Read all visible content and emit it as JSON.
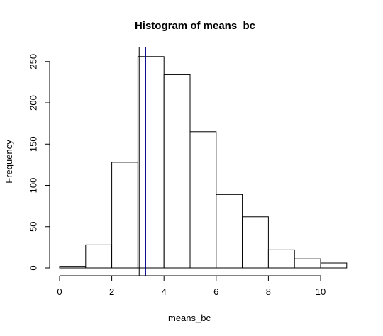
{
  "chart_data": {
    "type": "bar",
    "title": "Histogram of means_bc",
    "xlabel": "means_bc",
    "ylabel": "Frequency",
    "bins": [
      {
        "start": 0,
        "end": 1,
        "count": 2
      },
      {
        "start": 1,
        "end": 2,
        "count": 28
      },
      {
        "start": 2,
        "end": 3,
        "count": 128
      },
      {
        "start": 3,
        "end": 4,
        "count": 256
      },
      {
        "start": 4,
        "end": 5,
        "count": 234
      },
      {
        "start": 5,
        "end": 6,
        "count": 165
      },
      {
        "start": 6,
        "end": 7,
        "count": 89
      },
      {
        "start": 7,
        "end": 8,
        "count": 62
      },
      {
        "start": 8,
        "end": 9,
        "count": 22
      },
      {
        "start": 9,
        "end": 10,
        "count": 11
      },
      {
        "start": 10,
        "end": 11,
        "count": 6
      }
    ],
    "xlim": [
      0,
      11
    ],
    "ylim": [
      0,
      256
    ],
    "x_ticks": [
      0,
      2,
      4,
      6,
      8,
      10
    ],
    "y_ticks": [
      0,
      50,
      100,
      150,
      200,
      250
    ],
    "x_tick_labels": [
      "0",
      "2",
      "4",
      "6",
      "8",
      "10"
    ],
    "y_tick_labels": [
      "0",
      "50",
      "100",
      "150",
      "200",
      "250"
    ],
    "vertical_lines": [
      {
        "x": 3.05,
        "color": "#000000"
      },
      {
        "x": 3.3,
        "color": "#00008B"
      }
    ],
    "grid": false,
    "bar_fill": "#ffffff",
    "bar_stroke": "#000000"
  }
}
